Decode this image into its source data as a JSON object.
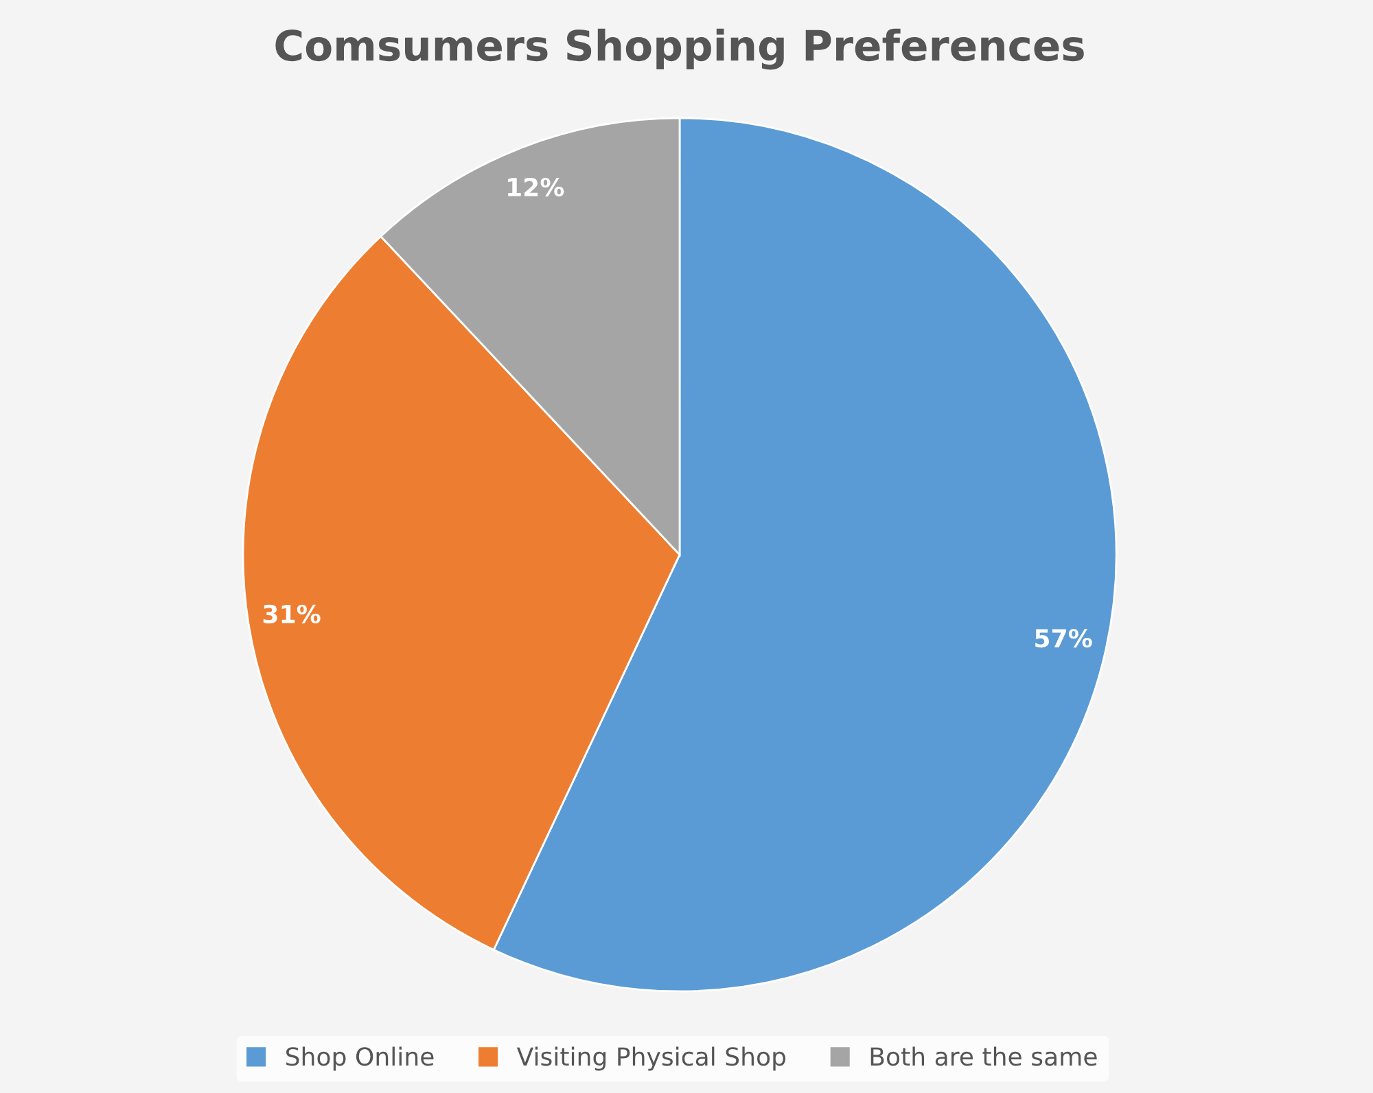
{
  "chart_data": {
    "type": "pie",
    "title": "Comsumers Shopping Preferences",
    "categories": [
      "Shop Online",
      "Visiting Physical Shop",
      "Both are the same"
    ],
    "values": [
      57,
      31,
      12
    ],
    "colors": [
      "#5b9bd5",
      "#ed7d31",
      "#a5a5a5"
    ],
    "value_labels": [
      "57%",
      "31%",
      "12%"
    ],
    "legend": "bottom"
  }
}
